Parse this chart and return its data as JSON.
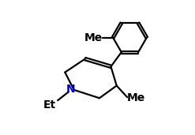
{
  "bg_color": "#ffffff",
  "line_color": "#000000",
  "text_color_N": "#0000cd",
  "text_color_black": "#000000",
  "label_Et": "Et",
  "label_Me_top": "Me",
  "label_Me_bottom": "Me",
  "label_N": "N",
  "font_size_labels": 10,
  "font_size_N": 10,
  "line_width": 1.6
}
